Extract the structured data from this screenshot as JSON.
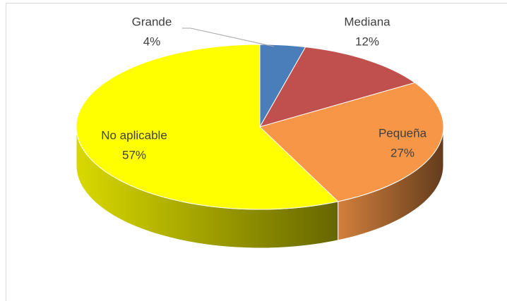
{
  "chart_data": {
    "type": "pie",
    "categories": [
      "Grande",
      "Mediana",
      "Pequeña",
      "No aplicable"
    ],
    "values": [
      4,
      12,
      27,
      57
    ],
    "value_labels": [
      "4%",
      "12%",
      "27%",
      "57%"
    ],
    "colors": [
      "#4a7ebb",
      "#c0504d",
      "#f79646",
      "#ffff00"
    ]
  }
}
